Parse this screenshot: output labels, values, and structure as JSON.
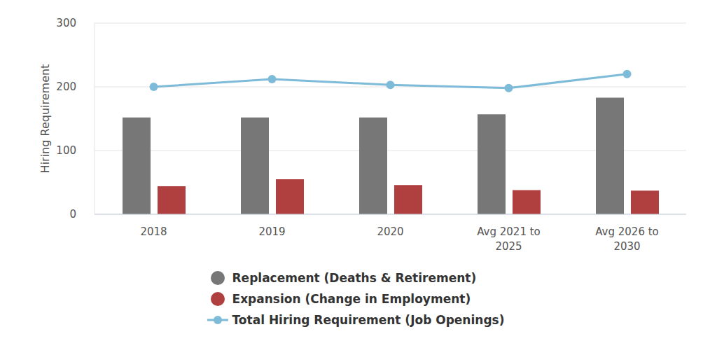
{
  "chart_data": {
    "type": "bar",
    "categories": [
      "2018",
      "2019",
      "2020",
      "Avg 2021 to 2025",
      "Avg 2026 to 2030"
    ],
    "series": [
      {
        "name": "Replacement (Deaths & Retirement)",
        "color": "#777777",
        "values": [
          152,
          152,
          152,
          157,
          183
        ]
      },
      {
        "name": "Expansion (Change in Employment)",
        "color": "#b0403f",
        "values": [
          44,
          55,
          46,
          38,
          37
        ]
      },
      {
        "name": "Total Hiring Requirement (Job Openings)",
        "type": "line",
        "color": "#7dbbd8",
        "marker": "circle",
        "values": [
          200,
          212,
          203,
          198,
          220
        ]
      }
    ],
    "y_label": "Hiring Requirement",
    "ylim": [
      0,
      300
    ],
    "yticks": [
      0,
      100,
      200,
      300
    ],
    "grid": true,
    "legend": "bottom"
  }
}
